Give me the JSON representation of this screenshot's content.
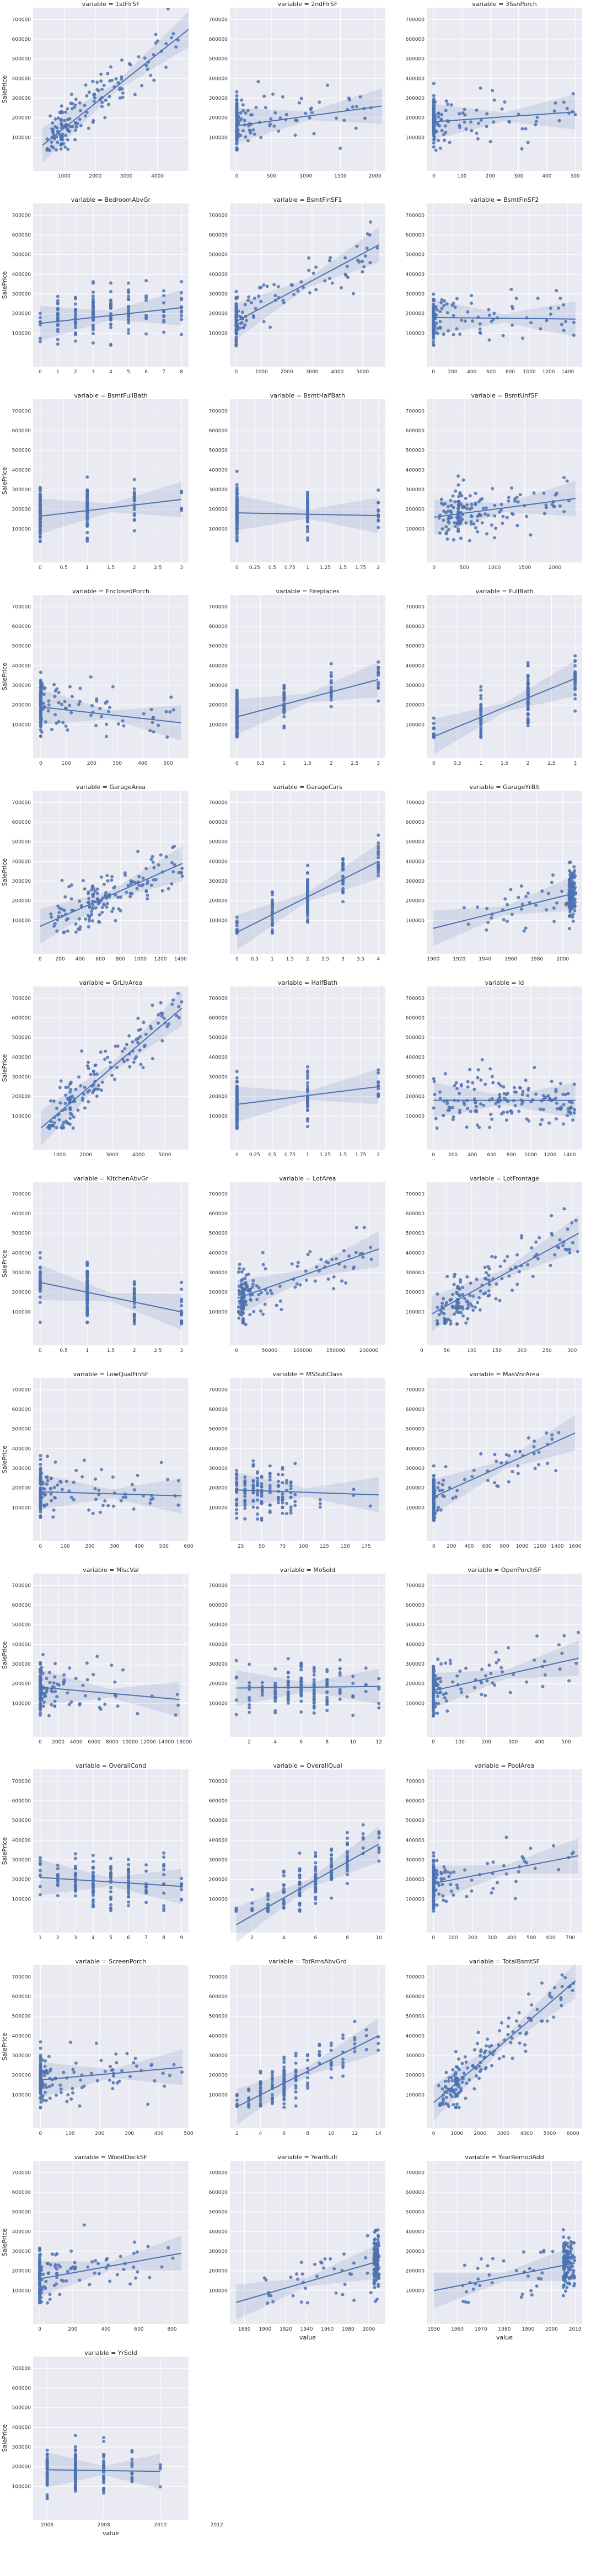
{
  "style": {
    "bg": "#eaeaf2",
    "grid": "#ffffff",
    "point": "#4c72b0",
    "line": "#4c72b0",
    "band": "#4c72b0"
  },
  "chart_data": {
    "type": "scatter",
    "title_prefix": "variable = ",
    "ylabel": "SalePrice",
    "xlabel": "value",
    "y_ticks": [
      100000,
      200000,
      300000,
      400000,
      500000,
      600000,
      700000
    ],
    "facets": [
      {
        "variable": "1stFlrSF",
        "x_ticks": [
          1000,
          2000,
          3000,
          4000
        ],
        "xlim": [
          0,
          5000
        ],
        "x_min": 334,
        "x_mode": 900,
        "x_max": 4692,
        "skew": 1,
        "reg": [
          [
            300,
            60000
          ],
          [
            5000,
            650000
          ]
        ]
      },
      {
        "variable": "2ndFlrSF",
        "x_ticks": [
          0,
          500,
          1000,
          1500,
          2000
        ],
        "xlim": [
          -100,
          2150
        ],
        "x_min": 0,
        "x_mode": 0,
        "x_max": 2065,
        "skew": 1,
        "reg": [
          [
            0,
            160000
          ],
          [
            2100,
            260000
          ]
        ]
      },
      {
        "variable": "3SsnPorch",
        "x_ticks": [
          0,
          100,
          200,
          300,
          400,
          500
        ],
        "xlim": [
          -25,
          525
        ],
        "x_min": 0,
        "x_mode": 0,
        "x_max": 508,
        "skew": 1,
        "reg": [
          [
            0,
            180000
          ],
          [
            500,
            230000
          ]
        ]
      },
      {
        "variable": "BedroomAbvGr",
        "x_ticks": [
          0,
          1,
          2,
          3,
          4,
          5,
          6,
          7,
          8
        ],
        "xlim": [
          -0.4,
          8.4
        ],
        "x_min": 0,
        "x_mode": 3,
        "x_max": 8,
        "discrete": true,
        "reg": [
          [
            0,
            150000
          ],
          [
            8,
            230000
          ]
        ]
      },
      {
        "variable": "BsmtFinSF1",
        "x_ticks": [
          0,
          1000,
          2000,
          3000,
          4000,
          5000
        ],
        "xlim": [
          -250,
          5900
        ],
        "x_min": 0,
        "x_mode": 0,
        "x_max": 5644,
        "skew": 1,
        "reg": [
          [
            0,
            160000
          ],
          [
            5650,
            550000
          ]
        ]
      },
      {
        "variable": "BsmtFinSF2",
        "x_ticks": [
          0,
          200,
          400,
          600,
          800,
          1000,
          1200,
          1400
        ],
        "xlim": [
          -70,
          1550
        ],
        "x_min": 0,
        "x_mode": 0,
        "x_max": 1474,
        "skew": 1,
        "reg": [
          [
            0,
            180000
          ],
          [
            1480,
            172000
          ]
        ]
      },
      {
        "variable": "BsmtFullBath",
        "x_ticks": [
          0.0,
          0.5,
          1.0,
          1.5,
          2.0,
          2.5,
          3.0
        ],
        "xlim": [
          -0.15,
          3.15
        ],
        "x_min": 0,
        "x_mode": 0,
        "x_max": 3,
        "discrete": true,
        "reg": [
          [
            0,
            165000
          ],
          [
            3,
            250000
          ]
        ]
      },
      {
        "variable": "BsmtHalfBath",
        "x_ticks": [
          0.0,
          0.25,
          0.5,
          0.75,
          1.0,
          1.25,
          1.5,
          1.75,
          2.0
        ],
        "xlim": [
          -0.1,
          2.1
        ],
        "x_min": 0,
        "x_mode": 0,
        "x_max": 2,
        "discrete": true,
        "reg": [
          [
            0,
            182000
          ],
          [
            2,
            168000
          ]
        ]
      },
      {
        "variable": "BsmtUnfSF",
        "x_ticks": [
          0,
          500,
          1000,
          1500,
          2000
        ],
        "xlim": [
          -120,
          2450
        ],
        "x_min": 0,
        "x_mode": 400,
        "x_max": 2336,
        "skew": 1,
        "reg": [
          [
            0,
            160000
          ],
          [
            2340,
            255000
          ]
        ]
      },
      {
        "variable": "EnclosedPorch",
        "x_ticks": [
          0,
          100,
          200,
          300,
          400,
          500
        ],
        "xlim": [
          -30,
          580
        ],
        "x_min": 0,
        "x_mode": 0,
        "x_max": 552,
        "skew": 1,
        "reg": [
          [
            0,
            190000
          ],
          [
            550,
            110000
          ]
        ]
      },
      {
        "variable": "Fireplaces",
        "x_ticks": [
          0.0,
          0.5,
          1.0,
          1.5,
          2.0,
          2.5,
          3.0
        ],
        "xlim": [
          -0.15,
          3.15
        ],
        "x_min": 0,
        "x_mode": 0,
        "x_max": 3,
        "discrete": true,
        "reg": [
          [
            0,
            140000
          ],
          [
            3,
            330000
          ]
        ]
      },
      {
        "variable": "FullBath",
        "x_ticks": [
          0.0,
          0.5,
          1.0,
          1.5,
          2.0,
          2.5,
          3.0
        ],
        "xlim": [
          -0.15,
          3.15
        ],
        "x_min": 0,
        "x_mode": 2,
        "x_max": 3,
        "discrete": true,
        "reg": [
          [
            0,
            40000
          ],
          [
            3,
            335000
          ]
        ]
      },
      {
        "variable": "GarageArea",
        "x_ticks": [
          0,
          200,
          400,
          600,
          800,
          1000,
          1200,
          1400
        ],
        "xlim": [
          -70,
          1480
        ],
        "x_min": 0,
        "x_mode": 480,
        "x_max": 1418,
        "skew": 0.6,
        "reg": [
          [
            0,
            70000
          ],
          [
            1420,
            390000
          ]
        ]
      },
      {
        "variable": "GarageCars",
        "x_ticks": [
          0.0,
          0.5,
          1.0,
          1.5,
          2.0,
          2.5,
          3.0,
          3.5,
          4.0
        ],
        "xlim": [
          -0.2,
          4.2
        ],
        "x_min": 0,
        "x_mode": 2,
        "x_max": 4,
        "discrete": true,
        "reg": [
          [
            0,
            40000
          ],
          [
            4,
            400000
          ]
        ]
      },
      {
        "variable": "GarageYrBlt",
        "x_ticks": [
          1900,
          1920,
          1940,
          1960,
          1980,
          2000
        ],
        "xlim": [
          1895,
          2015
        ],
        "x_min": 1900,
        "x_mode": 2005,
        "x_max": 2010,
        "skew": 0.6,
        "reg": [
          [
            1900,
            60000
          ],
          [
            2010,
            240000
          ]
        ]
      },
      {
        "variable": "GrLivArea",
        "x_ticks": [
          1000,
          2000,
          3000,
          4000,
          5000
        ],
        "xlim": [
          0,
          5900
        ],
        "x_min": 334,
        "x_mode": 1400,
        "x_max": 5642,
        "skew": 0.7,
        "reg": [
          [
            300,
            40000
          ],
          [
            5650,
            650000
          ]
        ]
      },
      {
        "variable": "HalfBath",
        "x_ticks": [
          0.0,
          0.25,
          0.5,
          0.75,
          1.0,
          1.25,
          1.5,
          1.75,
          2.0
        ],
        "xlim": [
          -0.1,
          2.1
        ],
        "x_min": 0,
        "x_mode": 0,
        "x_max": 2,
        "discrete": true,
        "reg": [
          [
            0,
            160000
          ],
          [
            2,
            250000
          ]
        ]
      },
      {
        "variable": "Id",
        "x_ticks": [
          0,
          200,
          400,
          600,
          800,
          1000,
          1200,
          1400
        ],
        "xlim": [
          -70,
          1530
        ],
        "x_min": 1,
        "x_mode": 730,
        "x_max": 1460,
        "uniform": true,
        "reg": [
          [
            0,
            181000
          ],
          [
            1460,
            180000
          ]
        ]
      },
      {
        "variable": "KitchenAbvGr",
        "x_ticks": [
          0.0,
          0.5,
          1.0,
          1.5,
          2.0,
          2.5,
          3.0
        ],
        "xlim": [
          -0.15,
          3.15
        ],
        "x_min": 0,
        "x_mode": 1,
        "x_max": 3,
        "discrete": true,
        "reg": [
          [
            0,
            250000
          ],
          [
            3,
            100000
          ]
        ]
      },
      {
        "variable": "LotArea",
        "x_ticks": [
          0,
          50000,
          100000,
          150000,
          200000
        ],
        "xlim": [
          -10000,
          225000
        ],
        "x_min": 1300,
        "x_mode": 9500,
        "x_max": 215245,
        "skew": 1,
        "reg": [
          [
            1300,
            170000
          ],
          [
            215000,
            420000
          ]
        ]
      },
      {
        "variable": "LotFrontage",
        "x_ticks": [
          0,
          50,
          100,
          150,
          200,
          250,
          300
        ],
        "xlim": [
          10,
          320
        ],
        "x_min": 21,
        "x_mode": 70,
        "x_max": 313,
        "skew": 0.6,
        "reg": [
          [
            20,
            90000
          ],
          [
            313,
            500000
          ]
        ]
      },
      {
        "variable": "LowQualFinSF",
        "x_ticks": [
          0,
          100,
          200,
          300,
          400,
          500,
          600
        ],
        "xlim": [
          -30,
          600
        ],
        "x_min": 0,
        "x_mode": 0,
        "x_max": 572,
        "skew": 1,
        "reg": [
          [
            0,
            181000
          ],
          [
            572,
            160000
          ]
        ]
      },
      {
        "variable": "MSSubClass",
        "x_ticks": [
          25,
          50,
          75,
          100,
          125,
          150,
          175
        ],
        "xlim": [
          12,
          198
        ],
        "x_min": 20,
        "x_mode": 20,
        "x_max": 190,
        "discrete": true,
        "levels": [
          20,
          30,
          40,
          45,
          50,
          60,
          70,
          75,
          80,
          85,
          90,
          120,
          160,
          180,
          190
        ],
        "reg": [
          [
            20,
            190000
          ],
          [
            190,
            165000
          ]
        ]
      },
      {
        "variable": "MasVnrArea",
        "x_ticks": [
          0,
          200,
          400,
          600,
          800,
          1000,
          1200,
          1400,
          1600
        ],
        "xlim": [
          -80,
          1680
        ],
        "x_min": 0,
        "x_mode": 0,
        "x_max": 1600,
        "skew": 1,
        "reg": [
          [
            0,
            155000
          ],
          [
            1600,
            480000
          ]
        ]
      },
      {
        "variable": "MiscVal",
        "x_ticks": [
          0,
          2000,
          4000,
          6000,
          8000,
          10000,
          12000,
          14000,
          16000
        ],
        "xlim": [
          -800,
          16500
        ],
        "x_min": 0,
        "x_mode": 0,
        "x_max": 15500,
        "skew": 1,
        "reg": [
          [
            0,
            182000
          ],
          [
            15500,
            120000
          ]
        ]
      },
      {
        "variable": "MoSold",
        "x_ticks": [
          2,
          4,
          6,
          8,
          10,
          12
        ],
        "xlim": [
          0.5,
          12.5
        ],
        "x_min": 1,
        "x_mode": 6,
        "x_max": 12,
        "discrete": true,
        "reg": [
          [
            1,
            178000
          ],
          [
            12,
            186000
          ]
        ]
      },
      {
        "variable": "OpenPorchSF",
        "x_ticks": [
          0,
          100,
          200,
          300,
          400,
          500
        ],
        "xlim": [
          -25,
          560
        ],
        "x_min": 0,
        "x_mode": 0,
        "x_max": 547,
        "skew": 1,
        "reg": [
          [
            0,
            165000
          ],
          [
            547,
            330000
          ]
        ]
      },
      {
        "variable": "OverallCond",
        "x_ticks": [
          1,
          2,
          3,
          4,
          5,
          6,
          7,
          8,
          9
        ],
        "xlim": [
          0.6,
          9.4
        ],
        "x_min": 1,
        "x_mode": 5,
        "x_max": 9,
        "discrete": true,
        "reg": [
          [
            1,
            210000
          ],
          [
            9,
            165000
          ]
        ]
      },
      {
        "variable": "OverallQual",
        "x_ticks": [
          2,
          4,
          6,
          8,
          10
        ],
        "xlim": [
          0.6,
          10.4
        ],
        "x_min": 1,
        "x_mode": 6,
        "x_max": 10,
        "discrete": true,
        "reg": [
          [
            1,
            -30000
          ],
          [
            10,
            380000
          ]
        ]
      },
      {
        "variable": "PoolArea",
        "x_ticks": [
          0,
          100,
          200,
          300,
          400,
          500,
          600,
          700
        ],
        "xlim": [
          -35,
          760
        ],
        "x_min": 0,
        "x_mode": 0,
        "x_max": 738,
        "skew": 1,
        "reg": [
          [
            0,
            180000
          ],
          [
            738,
            320000
          ]
        ]
      },
      {
        "variable": "ScreenPorch",
        "x_ticks": [
          0,
          100,
          200,
          300,
          400,
          500
        ],
        "xlim": [
          -25,
          500
        ],
        "x_min": 0,
        "x_mode": 0,
        "x_max": 480,
        "skew": 1,
        "reg": [
          [
            0,
            176000
          ],
          [
            480,
            240000
          ]
        ]
      },
      {
        "variable": "TotRmsAbvGrd",
        "x_ticks": [
          2,
          4,
          6,
          8,
          10,
          12,
          14
        ],
        "xlim": [
          1.4,
          14.6
        ],
        "x_min": 2,
        "x_mode": 6,
        "x_max": 14,
        "discrete": true,
        "reg": [
          [
            2,
            40000
          ],
          [
            14,
            400000
          ]
        ]
      },
      {
        "variable": "TotalBsmtSF",
        "x_ticks": [
          0,
          1000,
          2000,
          3000,
          4000,
          5000,
          6000
        ],
        "xlim": [
          -300,
          6400
        ],
        "x_min": 0,
        "x_mode": 950,
        "x_max": 6110,
        "skew": 0.7,
        "reg": [
          [
            0,
            60000
          ],
          [
            6110,
            680000
          ]
        ]
      },
      {
        "variable": "WoodDeckSF",
        "x_ticks": [
          0,
          200,
          400,
          600,
          800
        ],
        "xlim": [
          -40,
          900
        ],
        "x_min": 0,
        "x_mode": 0,
        "x_max": 857,
        "skew": 1,
        "reg": [
          [
            0,
            160000
          ],
          [
            857,
            290000
          ]
        ]
      },
      {
        "variable": "YearBuilt",
        "x_ticks": [
          1880,
          1900,
          1920,
          1940,
          1960,
          1980,
          2000
        ],
        "xlim": [
          1866,
          2016
        ],
        "x_min": 1872,
        "x_mode": 2005,
        "x_max": 2010,
        "skew": 0.5,
        "reg": [
          [
            1872,
            40000
          ],
          [
            2010,
            250000
          ]
        ]
      },
      {
        "variable": "YearRemodAdd",
        "x_ticks": [
          1950,
          1960,
          1970,
          1980,
          1990,
          2000,
          2010
        ],
        "xlim": [
          1947,
          2013
        ],
        "x_min": 1950,
        "x_mode": 2005,
        "x_max": 2010,
        "skew": 0.5,
        "reg": [
          [
            1950,
            100000
          ],
          [
            2010,
            240000
          ]
        ]
      },
      {
        "variable": "YrSold",
        "x_ticks": [
          2006,
          2008,
          2010,
          2012
        ],
        "xlim": [
          2005.5,
          2011
        ],
        "x_min": 2006,
        "x_mode": 2007,
        "x_max": 2010,
        "discrete": true,
        "reg": [
          [
            2006,
            184000
          ],
          [
            2010,
            176000
          ]
        ]
      }
    ]
  }
}
